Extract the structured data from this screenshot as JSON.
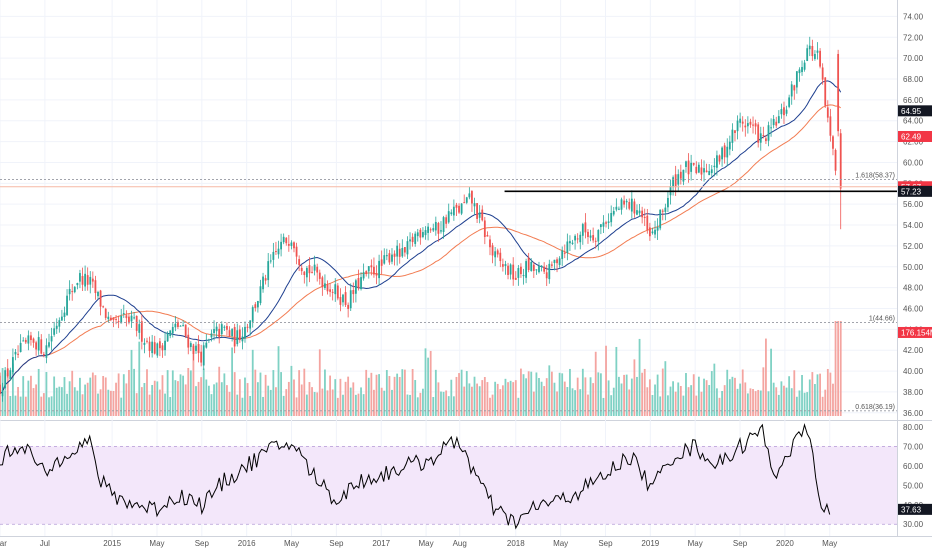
{
  "chart_data": [
    {
      "type": "candlestick",
      "panel": "price",
      "title": "",
      "ylim": [
        35.5,
        75
      ],
      "y_ticks": [
        "36.00",
        "38.00",
        "40.00",
        "42.00",
        "44.00",
        "46.00",
        "48.00",
        "50.00",
        "52.00",
        "54.00",
        "56.00",
        "58.00",
        "60.00",
        "62.00",
        "64.00",
        "66.00",
        "68.00",
        "70.00",
        "72.00",
        "74.00"
      ],
      "x_labels": [
        {
          "label": "Mar",
          "month_index": 0
        },
        {
          "label": "Jul",
          "month_index": 4
        },
        {
          "label": "2015",
          "month_index": 10
        },
        {
          "label": "May",
          "month_index": 14
        },
        {
          "label": "Sep",
          "month_index": 18
        },
        {
          "label": "2016",
          "month_index": 22
        },
        {
          "label": "May",
          "month_index": 26
        },
        {
          "label": "Sep",
          "month_index": 30
        },
        {
          "label": "2017",
          "month_index": 34
        },
        {
          "label": "May",
          "month_index": 38
        },
        {
          "label": "Aug",
          "month_index": 41
        },
        {
          "label": "2018",
          "month_index": 46
        },
        {
          "label": "May",
          "month_index": 50
        },
        {
          "label": "Sep",
          "month_index": 54
        },
        {
          "label": "2019",
          "month_index": 58
        },
        {
          "label": "May",
          "month_index": 62
        },
        {
          "label": "Sep",
          "month_index": 66
        },
        {
          "label": "2020",
          "month_index": 70
        },
        {
          "label": "May",
          "month_index": 74
        }
      ],
      "x_range_months": [
        0,
        80
      ],
      "price_path": [
        [
          0,
          38.5
        ],
        [
          1,
          40.5
        ],
        [
          2,
          42.2
        ],
        [
          3,
          43.0
        ],
        [
          4,
          42.0
        ],
        [
          5,
          44.5
        ],
        [
          6,
          47.0
        ],
        [
          7,
          49.0
        ],
        [
          8,
          48.5
        ],
        [
          9,
          46.5
        ],
        [
          10,
          44.0
        ],
        [
          11,
          45.0
        ],
        [
          12,
          44.5
        ],
        [
          13,
          43.0
        ],
        [
          14,
          42.0
        ],
        [
          15,
          43.5
        ],
        [
          16,
          44.5
        ],
        [
          17,
          42.5
        ],
        [
          18,
          41.5
        ],
        [
          19,
          43.5
        ],
        [
          20,
          44.0
        ],
        [
          21,
          43.0
        ],
        [
          22,
          44.5
        ],
        [
          23,
          47.0
        ],
        [
          24,
          50.0
        ],
        [
          25,
          52.0
        ],
        [
          26,
          53.0
        ],
        [
          27,
          50.0
        ],
        [
          28,
          49.5
        ],
        [
          29,
          48.5
        ],
        [
          30,
          47.5
        ],
        [
          31,
          46.5
        ],
        [
          32,
          48.5
        ],
        [
          33,
          49.5
        ],
        [
          34,
          50.0
        ],
        [
          35,
          51.5
        ],
        [
          36,
          51.0
        ],
        [
          37,
          53.0
        ],
        [
          38,
          54.0
        ],
        [
          39,
          53.5
        ],
        [
          40,
          55.0
        ],
        [
          41,
          55.5
        ],
        [
          42,
          56.5
        ],
        [
          43,
          54.0
        ],
        [
          44,
          51.0
        ],
        [
          45,
          50.0
        ],
        [
          46,
          49.0
        ],
        [
          47,
          50.0
        ],
        [
          48,
          49.5
        ],
        [
          49,
          49.5
        ],
        [
          50,
          51.5
        ],
        [
          51,
          52.5
        ],
        [
          52,
          53.5
        ],
        [
          53,
          53.0
        ],
        [
          54,
          54.5
        ],
        [
          55,
          55.5
        ],
        [
          56,
          56.0
        ],
        [
          57,
          55.5
        ],
        [
          58,
          52.5
        ],
        [
          59,
          55.0
        ],
        [
          60,
          58.0
        ],
        [
          61,
          59.5
        ],
        [
          62,
          59.0
        ],
        [
          63,
          59.5
        ],
        [
          64,
          60.0
        ],
        [
          65,
          62.0
        ],
        [
          66,
          64.0
        ],
        [
          67,
          63.5
        ],
        [
          68,
          62.0
        ],
        [
          69,
          63.5
        ],
        [
          70,
          65.0
        ],
        [
          71,
          68.0
        ],
        [
          72,
          71.0
        ],
        [
          73,
          70.0
        ],
        [
          74,
          62.5
        ],
        [
          75,
          57.5
        ]
      ],
      "overlays": [
        {
          "name": "",
          "kind": "moving-average-short",
          "color": "#1e3f8f"
        },
        {
          "name": "",
          "kind": "moving-average-long",
          "color": "#f27c52"
        }
      ],
      "annotations": [
        {
          "kind": "horizontal-line",
          "y": 57.23,
          "color": "#000000",
          "start_month": 45
        },
        {
          "kind": "dotted-line",
          "y": 58.37,
          "label": "1.618(58.37)"
        },
        {
          "kind": "dotted-line",
          "y": 44.66,
          "label": "1(44.66)"
        },
        {
          "kind": "dotted-line",
          "y": 36.19,
          "label": "0.618(36.19)"
        },
        {
          "kind": "line",
          "y": 57.67,
          "color": "#f6b9a6"
        }
      ],
      "price_tags": [
        {
          "value": "64.95",
          "y": 64.95,
          "color": "#131722"
        },
        {
          "value": "62.49",
          "y": 62.49,
          "color": "#f23645"
        },
        {
          "value": "57.67",
          "y": 57.67,
          "color": "#f23645"
        },
        {
          "value": "57.23",
          "y": 57.23,
          "color": "#131722"
        },
        {
          "value": "176.154M",
          "y": 43.7,
          "color": "#f23645"
        }
      ]
    },
    {
      "type": "bar",
      "panel": "volume",
      "colors": {
        "up": "#7fd1c4",
        "down": "#f4a4a0"
      }
    },
    {
      "type": "line",
      "panel": "oscillator",
      "ylim": [
        26,
        82
      ],
      "y_ticks": [
        "30.00",
        "40.00",
        "50.00",
        "60.00",
        "70.00",
        "80.00"
      ],
      "band": [
        30,
        70
      ],
      "band_color": "#f3e7fa",
      "line_color": "#000000",
      "current_tag": {
        "value": "37.63",
        "y": 37.63,
        "color": "#131722"
      },
      "path": [
        [
          0,
          63
        ],
        [
          2,
          72
        ],
        [
          4,
          55
        ],
        [
          6,
          68
        ],
        [
          8,
          72
        ],
        [
          9,
          52
        ],
        [
          10,
          45
        ],
        [
          12,
          40
        ],
        [
          14,
          38
        ],
        [
          16,
          45
        ],
        [
          18,
          40
        ],
        [
          20,
          52
        ],
        [
          22,
          60
        ],
        [
          24,
          68
        ],
        [
          26,
          72
        ],
        [
          28,
          55
        ],
        [
          30,
          42
        ],
        [
          32,
          52
        ],
        [
          34,
          55
        ],
        [
          36,
          60
        ],
        [
          38,
          62
        ],
        [
          40,
          70
        ],
        [
          41,
          73
        ],
        [
          42,
          60
        ],
        [
          44,
          38
        ],
        [
          46,
          30
        ],
        [
          48,
          40
        ],
        [
          50,
          42
        ],
        [
          52,
          48
        ],
        [
          54,
          55
        ],
        [
          56,
          65
        ],
        [
          57,
          60
        ],
        [
          58,
          48
        ],
        [
          60,
          65
        ],
        [
          62,
          70
        ],
        [
          64,
          60
        ],
        [
          66,
          70
        ],
        [
          68,
          78
        ],
        [
          69,
          55
        ],
        [
          70,
          65
        ],
        [
          71,
          72
        ],
        [
          72,
          80
        ],
        [
          73,
          45
        ],
        [
          74,
          35
        ]
      ]
    }
  ]
}
